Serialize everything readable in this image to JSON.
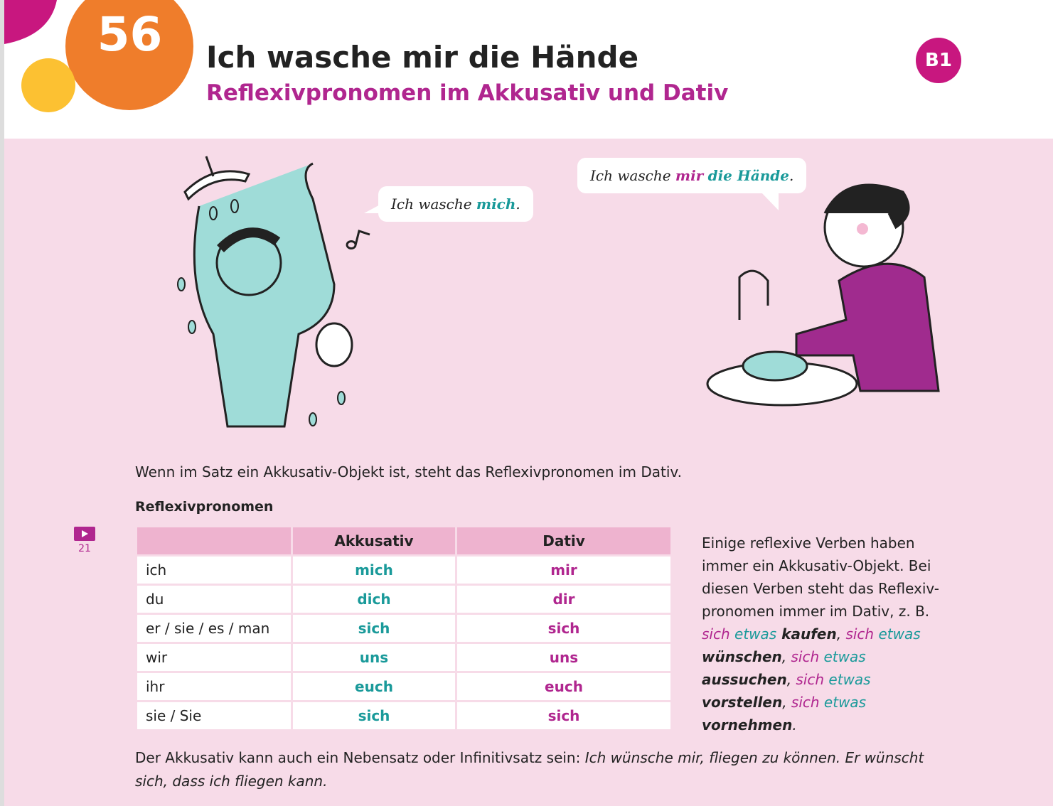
{
  "header": {
    "number": "56",
    "title": "Ich wasche mir die Hände",
    "subtitle": "Reflexivpronomen im Akkusativ und Dativ",
    "level": "B1"
  },
  "bubbles": [
    {
      "segments": [
        {
          "text": "Ich wasche "
        },
        {
          "text": "mich",
          "color": "#1a9a9a",
          "bold": true
        },
        {
          "text": "."
        }
      ]
    },
    {
      "segments": [
        {
          "text": "Ich wasche "
        },
        {
          "text": "mir",
          "color": "#b0268f",
          "bold": true
        },
        {
          "text": " "
        },
        {
          "text": "die Hände",
          "color": "#1a9a9a",
          "bold": true
        },
        {
          "text": "."
        }
      ]
    }
  ],
  "rule": "Wenn im Satz ein Akkusativ-Objekt ist, steht das Reflexivpronomen im Dativ.",
  "table": {
    "title": "Reflexivpronomen",
    "columns": [
      "Akkusativ",
      "Dativ"
    ],
    "rows": [
      [
        "ich",
        "mich",
        "mir"
      ],
      [
        "du",
        "dich",
        "dir"
      ],
      [
        "er / sie / es / man",
        "sich",
        "sich"
      ],
      [
        "wir",
        "uns",
        "uns"
      ],
      [
        "ihr",
        "euch",
        "euch"
      ],
      [
        "sie / Sie",
        "sich",
        "sich"
      ]
    ]
  },
  "video": {
    "number": "21"
  },
  "note": {
    "segments": [
      {
        "text": "Einige reflexive Verben haben immer ein Akkusativ-Objekt. Bei diesen Verben steht das Reflexiv-pronomen immer im Dativ, z. B. "
      },
      {
        "text": "sich",
        "color": "#b0268f",
        "italic": true
      },
      {
        "text": " etwas",
        "color": "#1a9a9a",
        "italic": true
      },
      {
        "text": " kaufen",
        "bold": true,
        "italic": true
      },
      {
        "text": ", ",
        "italic": true
      },
      {
        "text": "sich",
        "color": "#b0268f",
        "italic": true
      },
      {
        "text": " etwas",
        "color": "#1a9a9a",
        "italic": true
      },
      {
        "text": " wünschen",
        "bold": true,
        "italic": true
      },
      {
        "text": ", ",
        "italic": true
      },
      {
        "text": "sich",
        "color": "#b0268f",
        "italic": true
      },
      {
        "text": " etwas",
        "color": "#1a9a9a",
        "italic": true
      },
      {
        "text": " aussuchen",
        "bold": true,
        "italic": true
      },
      {
        "text": ", ",
        "italic": true
      },
      {
        "text": "sich",
        "color": "#b0268f",
        "italic": true
      },
      {
        "text": " etwas",
        "color": "#1a9a9a",
        "italic": true
      },
      {
        "text": " vorstellen",
        "bold": true,
        "italic": true
      },
      {
        "text": ", ",
        "italic": true
      },
      {
        "text": "sich",
        "color": "#b0268f",
        "italic": true
      },
      {
        "text": " etwas",
        "color": "#1a9a9a",
        "italic": true
      },
      {
        "text": " vornehmen",
        "bold": true,
        "italic": true
      },
      {
        "text": ".",
        "italic": true
      }
    ]
  },
  "footer": {
    "segments": [
      {
        "text": "Der Akkusativ kann auch ein Nebensatz oder Infinitivsatz sein: "
      },
      {
        "text": "Ich wünsche mir, fliegen zu können. Er wünscht sich, dass ich fliegen kann.",
        "italic": true
      }
    ]
  }
}
